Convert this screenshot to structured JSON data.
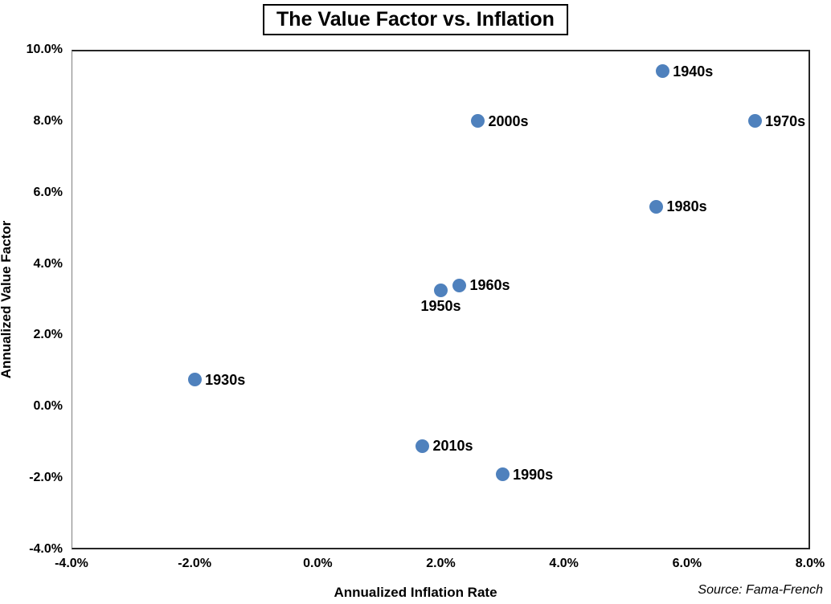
{
  "chart_data": {
    "type": "scatter",
    "title": "The Value Factor vs. Inflation",
    "xlabel": "Annualized Inflation Rate",
    "ylabel": "Annualized Value Factor",
    "source": "Source: Fama-French",
    "xlim": [
      -4,
      8
    ],
    "ylim": [
      -4,
      10
    ],
    "x_tick_values": [
      -4,
      -2,
      0,
      2,
      4,
      6,
      8
    ],
    "x_tick_labels": [
      "-4.0%",
      "-2.0%",
      "0.0%",
      "2.0%",
      "4.0%",
      "6.0%",
      "8.0%"
    ],
    "y_tick_values": [
      10,
      8,
      6,
      4,
      2,
      0,
      -2,
      -4
    ],
    "y_tick_labels": [
      "10.0%",
      "8.0%",
      "6.0%",
      "4.0%",
      "2.0%",
      "0.0%",
      "-2.0%",
      "-4.0%"
    ],
    "grid": false,
    "legend": null,
    "marker_color": "#4f81bd",
    "points": [
      {
        "label": "1930s",
        "x": -2.0,
        "y": 0.75,
        "label_pos": "right"
      },
      {
        "label": "1940s",
        "x": 5.6,
        "y": 9.4,
        "label_pos": "right"
      },
      {
        "label": "1950s",
        "x": 2.0,
        "y": 3.25,
        "label_pos": "below"
      },
      {
        "label": "1960s",
        "x": 2.3,
        "y": 3.4,
        "label_pos": "right"
      },
      {
        "label": "1970s",
        "x": 7.1,
        "y": 8.0,
        "label_pos": "right"
      },
      {
        "label": "1980s",
        "x": 5.5,
        "y": 5.6,
        "label_pos": "right"
      },
      {
        "label": "1990s",
        "x": 3.0,
        "y": -1.9,
        "label_pos": "right"
      },
      {
        "label": "2000s",
        "x": 2.6,
        "y": 8.0,
        "label_pos": "right"
      },
      {
        "label": "2010s",
        "x": 1.7,
        "y": -1.1,
        "label_pos": "right"
      }
    ]
  }
}
